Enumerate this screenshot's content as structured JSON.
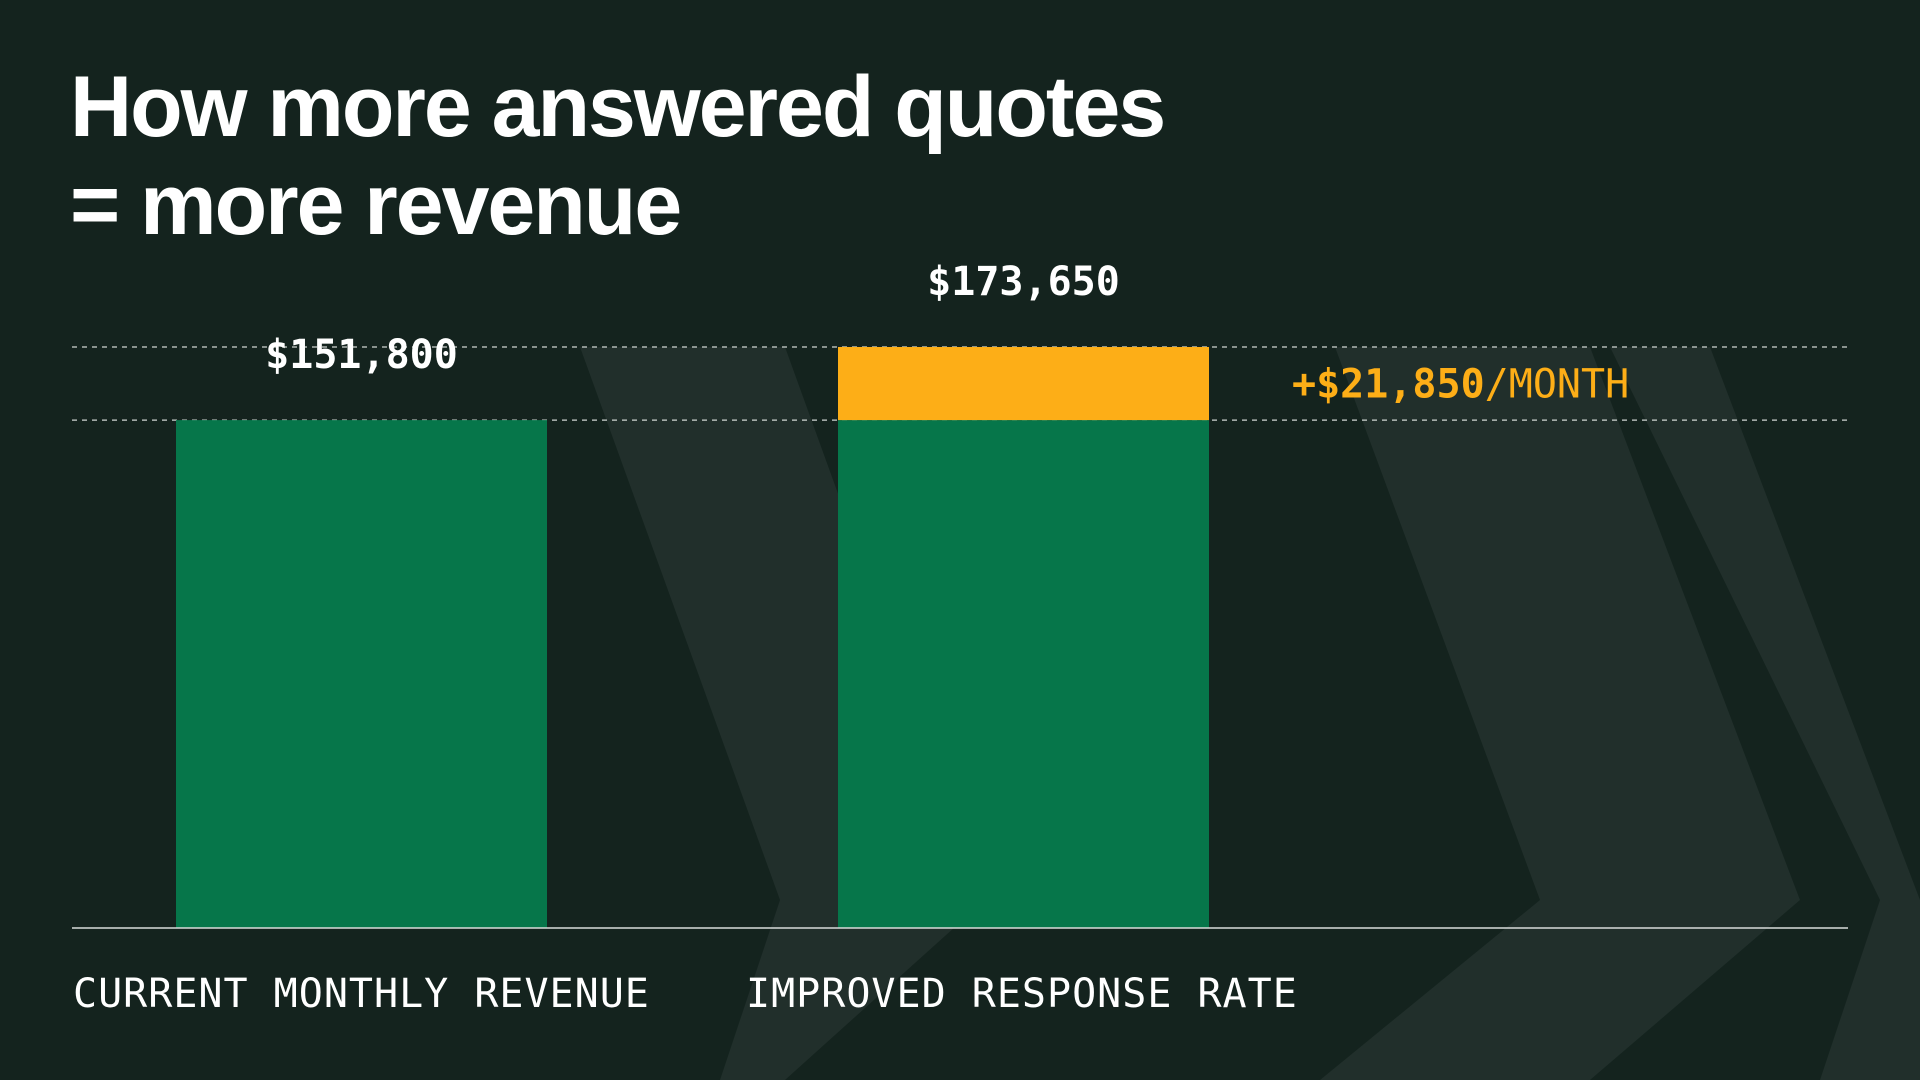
{
  "title_lines": [
    "How more answered quotes",
    "= more revenue"
  ],
  "colors": {
    "background": "#14231e",
    "chevron": "#212f2b",
    "base_bar": "#06764a",
    "increase_bar": "#fdae17",
    "text": "#ffffff",
    "accent_text": "#fdae17"
  },
  "chart_data": {
    "type": "bar",
    "stacked": true,
    "categories": [
      "CURRENT MONTHLY REVENUE",
      "IMPROVED RESPONSE RATE"
    ],
    "series": [
      {
        "values": [
          151800,
          151800
        ]
      },
      {
        "values": [
          0,
          21850
        ]
      }
    ],
    "totals": [
      151800,
      173650
    ],
    "value_labels": [
      "$151,800",
      "$173,650"
    ],
    "annotation": {
      "amount": "+$21,850",
      "unit": "/MONTH"
    },
    "ylim": [
      0,
      173650
    ],
    "gridlines": [
      151800,
      173650
    ],
    "gridline_style": "dashed",
    "legend": "none"
  }
}
